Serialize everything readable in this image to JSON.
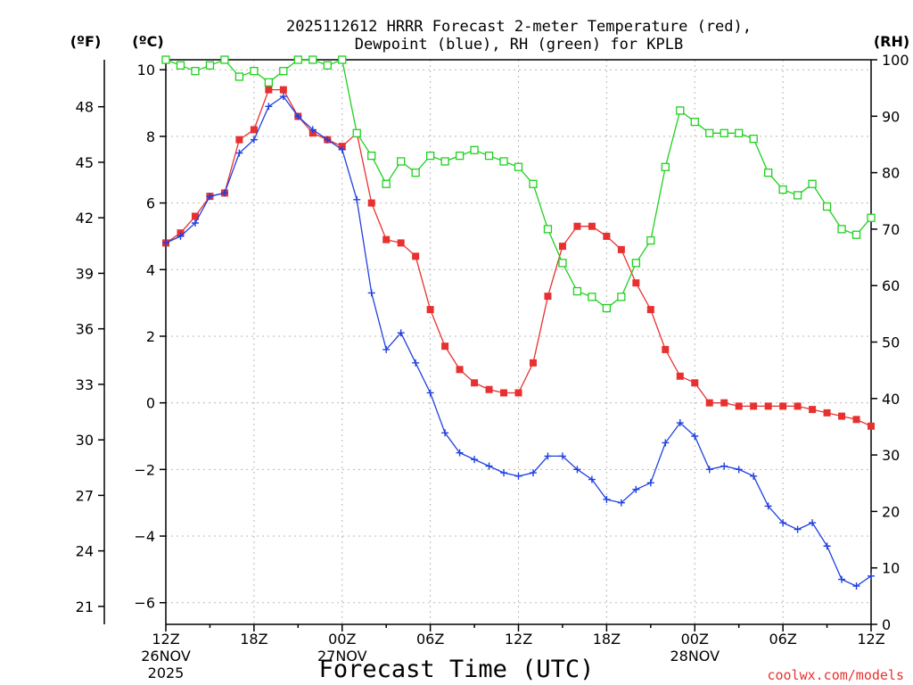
{
  "chart_data": {
    "type": "line",
    "title_line1": "2025112612 HRRR Forecast 2-meter Temperature (red),",
    "title_line2": "Dewpoint (blue), RH (green) for KPLB",
    "xlabel": "Forecast Time (UTC)",
    "credit": "coolwx.com/models",
    "units": {
      "fahrenheit": "(ºF)",
      "celsius": "(ºC)",
      "rh": "(RH)"
    },
    "forecast_hours_range": [
      0,
      48
    ],
    "celsius_range": [
      -6.65,
      10.3
    ],
    "rh_range": [
      0,
      100
    ],
    "celsius_ticks": [
      {
        "v": -6,
        "t": "−6"
      },
      {
        "v": -4,
        "t": "−4"
      },
      {
        "v": -2,
        "t": "−2"
      },
      {
        "v": 0,
        "t": "0"
      },
      {
        "v": 2,
        "t": "2"
      },
      {
        "v": 4,
        "t": "4"
      },
      {
        "v": 6,
        "t": "6"
      },
      {
        "v": 8,
        "t": "8"
      },
      {
        "v": 10,
        "t": "10"
      }
    ],
    "fahrenheit_ticks": [
      {
        "v": 21,
        "t": "21"
      },
      {
        "v": 24,
        "t": "24"
      },
      {
        "v": 27,
        "t": "27"
      },
      {
        "v": 30,
        "t": "30"
      },
      {
        "v": 33,
        "t": "33"
      },
      {
        "v": 36,
        "t": "36"
      },
      {
        "v": 39,
        "t": "39"
      },
      {
        "v": 42,
        "t": "42"
      },
      {
        "v": 45,
        "t": "45"
      },
      {
        "v": 48,
        "t": "48"
      }
    ],
    "rh_ticks": [
      {
        "v": 0,
        "t": "0"
      },
      {
        "v": 10,
        "t": "10"
      },
      {
        "v": 20,
        "t": "20"
      },
      {
        "v": 30,
        "t": "30"
      },
      {
        "v": 40,
        "t": "40"
      },
      {
        "v": 50,
        "t": "50"
      },
      {
        "v": 60,
        "t": "60"
      },
      {
        "v": 70,
        "t": "70"
      },
      {
        "v": 80,
        "t": "80"
      },
      {
        "v": 90,
        "t": "90"
      },
      {
        "v": 100,
        "t": "100"
      }
    ],
    "x_ticks": [
      {
        "h": 0,
        "l1": "12Z",
        "l2": "26NOV",
        "l3": "2025"
      },
      {
        "h": 6,
        "l1": "18Z"
      },
      {
        "h": 12,
        "l1": "00Z",
        "l2": "27NOV"
      },
      {
        "h": 18,
        "l1": "06Z"
      },
      {
        "h": 24,
        "l1": "12Z"
      },
      {
        "h": 30,
        "l1": "18Z"
      },
      {
        "h": 36,
        "l1": "00Z",
        "l2": "28NOV"
      },
      {
        "h": 42,
        "l1": "06Z"
      },
      {
        "h": 48,
        "l1": "12Z"
      }
    ],
    "series": [
      {
        "name": "Temperature",
        "unit": "C",
        "color": "#e83030",
        "marker": "filled-square",
        "values": [
          4.8,
          5.1,
          5.6,
          6.2,
          6.3,
          7.9,
          8.2,
          9.4,
          9.4,
          8.6,
          8.1,
          7.9,
          7.7,
          8.1,
          6.0,
          4.9,
          4.8,
          4.4,
          2.8,
          1.7,
          1.0,
          0.6,
          0.4,
          0.3,
          0.3,
          1.2,
          3.2,
          4.7,
          5.3,
          5.3,
          5.0,
          4.6,
          3.6,
          2.8,
          1.6,
          0.8,
          0.6,
          0.0,
          0.0,
          -0.1,
          -0.1,
          -0.1,
          -0.1,
          -0.1,
          -0.2,
          -0.3,
          -0.4,
          -0.5,
          -0.7
        ]
      },
      {
        "name": "Dewpoint",
        "unit": "C",
        "color": "#2040e0",
        "marker": "plus",
        "values": [
          4.8,
          5.0,
          5.4,
          6.2,
          6.3,
          7.5,
          7.9,
          8.9,
          9.2,
          8.6,
          8.2,
          7.9,
          7.6,
          6.1,
          3.3,
          1.6,
          2.1,
          1.2,
          0.3,
          -0.9,
          -1.5,
          -1.7,
          -1.9,
          -2.1,
          -2.2,
          -2.1,
          -1.6,
          -1.6,
          -2.0,
          -2.3,
          -2.9,
          -3.0,
          -2.6,
          -2.4,
          -1.2,
          -0.6,
          -1.0,
          -2.0,
          -1.9,
          -2.0,
          -2.2,
          -3.1,
          -3.6,
          -3.8,
          -3.6,
          -4.3,
          -5.3,
          -5.5,
          -5.2
        ]
      },
      {
        "name": "RH",
        "unit": "%",
        "color": "#20d020",
        "marker": "open-square",
        "values": [
          100,
          99,
          98,
          99,
          100,
          97,
          98,
          96,
          98,
          100,
          100,
          99,
          100,
          87,
          83,
          78,
          82,
          80,
          83,
          82,
          83,
          84,
          83,
          82,
          81,
          78,
          70,
          64,
          59,
          58,
          56,
          58,
          64,
          68,
          81,
          91,
          89,
          87,
          87,
          87,
          86,
          80,
          77,
          76,
          78,
          74,
          70,
          69,
          72
        ]
      }
    ]
  }
}
